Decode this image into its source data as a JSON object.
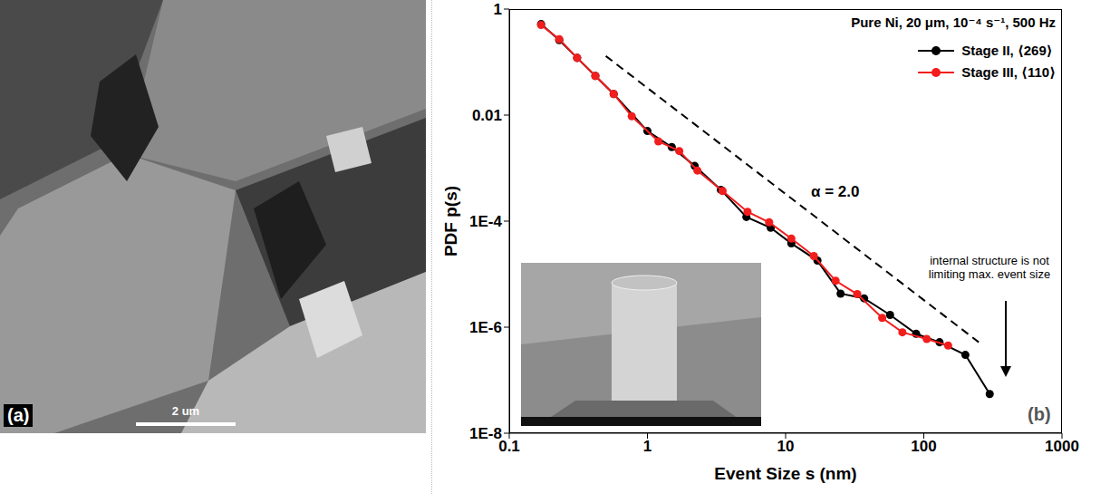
{
  "panel_a": {
    "letter": "(a)",
    "scale_bar": "2 um"
  },
  "chart_data": {
    "type": "line",
    "letter": "(b)",
    "title": "Pure Ni, 20 μm, 10⁻⁴ s⁻¹, 500 Hz",
    "x_label": "Event Size s (nm)",
    "y_label": "PDF p(s)",
    "log": true,
    "grid": false,
    "legend": "upper right",
    "marker": "circle",
    "line_style": "solid",
    "xlim": [
      0.1,
      1000
    ],
    "ylim": [
      1e-08,
      1
    ],
    "xticks": [
      0.1,
      1,
      10,
      100,
      1000
    ],
    "yticks": [
      1,
      0.01,
      {
        "value": 0.0001,
        "label": "1E-4"
      },
      {
        "value": 1e-06,
        "label": "1E-6"
      },
      {
        "value": 1e-08,
        "label": "1E-8"
      }
    ],
    "series": [
      {
        "name": "Stage II, ⟨269⟩",
        "color": "#000000",
        "x": [
          0.17,
          0.23,
          0.31,
          0.42,
          0.57,
          1.0,
          1.5,
          2.2,
          3.4,
          5.2,
          7.8,
          11,
          17,
          25,
          37,
          57,
          88,
          130,
          200,
          300
        ],
        "values": [
          0.52,
          0.26,
          0.12,
          0.055,
          0.025,
          0.005,
          0.0025,
          0.0011,
          0.00039,
          0.00012,
          7.5e-05,
          3.8e-05,
          1.8e-05,
          4.3e-06,
          3.5e-06,
          1.7e-06,
          7.5e-07,
          5.2e-07,
          3e-07,
          5.5e-08
        ]
      },
      {
        "name": "Stage III, ⟨110⟩",
        "color": "#f21d1d",
        "x": [
          0.17,
          0.23,
          0.31,
          0.42,
          0.57,
          0.77,
          1.2,
          1.7,
          2.3,
          3.5,
          5.3,
          7.6,
          11,
          16,
          23,
          33,
          50,
          70,
          105,
          150
        ],
        "values": [
          0.5,
          0.27,
          0.12,
          0.055,
          0.025,
          0.0095,
          0.0032,
          0.0021,
          0.0009,
          0.00037,
          0.00015,
          9.5e-05,
          4.7e-05,
          2.2e-05,
          7.5e-06,
          4.2e-06,
          1.5e-06,
          8e-07,
          6e-07,
          4.5e-07
        ]
      }
    ],
    "reference_line": {
      "label": "α = 2.0",
      "color": "#000000",
      "line_style": "dashed",
      "x": [
        0.5,
        250
      ],
      "values": [
        0.13,
        5.2e-07
      ]
    },
    "annotation": "internal structure is not limiting max. event size"
  }
}
